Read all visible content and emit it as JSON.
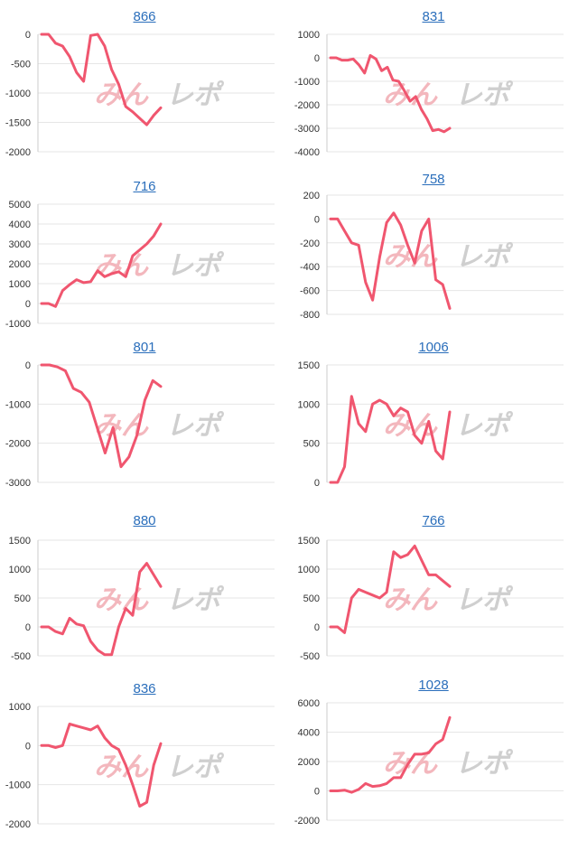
{
  "page": {
    "watermark": "みんレポ",
    "watermark_colors": {
      "part1": "#f3b7bd",
      "part2": "#cfcfcf"
    }
  },
  "style": {
    "line_color": "#f0566f",
    "grid_color": "#e6e6e6",
    "axis_color": "#cccccc",
    "title_color": "#2a6ebb"
  },
  "chart_data": [
    {
      "type": "line",
      "title": "866",
      "yticks": [
        0,
        -500,
        -1000,
        -1500,
        -2000
      ],
      "ylim": [
        -2000,
        0
      ],
      "values": [
        0,
        0,
        -150,
        -200,
        -380,
        -650,
        -800,
        -20,
        0,
        -200,
        -600,
        -850,
        -1230,
        -1320,
        -1430,
        -1540,
        -1380,
        -1250
      ]
    },
    {
      "type": "line",
      "title": "831",
      "yticks": [
        1000,
        0,
        -1000,
        -2000,
        -3000,
        -4000
      ],
      "ylim": [
        -4000,
        1000
      ],
      "values": [
        0,
        0,
        -100,
        -100,
        -50,
        -300,
        -650,
        100,
        -50,
        -550,
        -400,
        -950,
        -1000,
        -1400,
        -1850,
        -1650,
        -2200,
        -2600,
        -3100,
        -3050,
        -3150,
        -3000
      ]
    },
    {
      "type": "line",
      "title": "716",
      "yticks": [
        5000,
        4000,
        3000,
        2000,
        1000,
        0,
        -1000
      ],
      "ylim": [
        -1000,
        5000
      ],
      "values": [
        0,
        0,
        -150,
        650,
        950,
        1200,
        1050,
        1100,
        1650,
        1350,
        1500,
        1600,
        1350,
        2400,
        2700,
        3000,
        3400,
        4000
      ]
    },
    {
      "type": "line",
      "title": "758",
      "yticks": [
        200,
        0,
        -200,
        -400,
        -600,
        -800
      ],
      "ylim": [
        -800,
        200
      ],
      "values": [
        0,
        0,
        -100,
        -200,
        -220,
        -530,
        -680,
        -320,
        -30,
        50,
        -50,
        -220,
        -370,
        -100,
        0,
        -510,
        -550,
        -750
      ]
    },
    {
      "type": "line",
      "title": "801",
      "yticks": [
        0,
        -1000,
        -2000,
        -3000
      ],
      "ylim": [
        -3000,
        0
      ],
      "values": [
        0,
        0,
        -50,
        -150,
        -600,
        -700,
        -950,
        -1600,
        -2250,
        -1600,
        -2600,
        -2350,
        -1800,
        -900,
        -400,
        -550
      ]
    },
    {
      "type": "line",
      "title": "1006",
      "yticks": [
        1500,
        1000,
        500,
        0
      ],
      "ylim": [
        0,
        1500
      ],
      "values": [
        0,
        0,
        200,
        1100,
        750,
        650,
        1000,
        1050,
        1000,
        850,
        950,
        900,
        600,
        500,
        780,
        400,
        300,
        900
      ]
    },
    {
      "type": "line",
      "title": "880",
      "yticks": [
        1500,
        1000,
        500,
        0,
        -500
      ],
      "ylim": [
        -500,
        1500
      ],
      "values": [
        0,
        0,
        -80,
        -120,
        150,
        50,
        20,
        -250,
        -400,
        -480,
        -480,
        0,
        320,
        200,
        950,
        1100,
        900,
        700
      ]
    },
    {
      "type": "line",
      "title": "766",
      "yticks": [
        1500,
        1000,
        500,
        0,
        -500
      ],
      "ylim": [
        -500,
        1500
      ],
      "values": [
        0,
        0,
        -100,
        500,
        650,
        600,
        550,
        500,
        600,
        1300,
        1200,
        1250,
        1400,
        1150,
        900,
        900,
        800,
        700
      ]
    },
    {
      "type": "line",
      "title": "836",
      "yticks": [
        1000,
        0,
        -1000,
        -2000
      ],
      "ylim": [
        -2000,
        1000
      ],
      "values": [
        0,
        0,
        -50,
        0,
        550,
        500,
        450,
        400,
        500,
        200,
        0,
        -100,
        -500,
        -1000,
        -1550,
        -1450,
        -500,
        50
      ]
    },
    {
      "type": "line",
      "title": "1028",
      "yticks": [
        6000,
        4000,
        2000,
        0,
        -2000
      ],
      "ylim": [
        -2000,
        6000
      ],
      "values": [
        0,
        0,
        50,
        -100,
        100,
        500,
        300,
        350,
        500,
        900,
        900,
        1800,
        2500,
        2500,
        2600,
        3200,
        3500,
        5000
      ]
    }
  ]
}
